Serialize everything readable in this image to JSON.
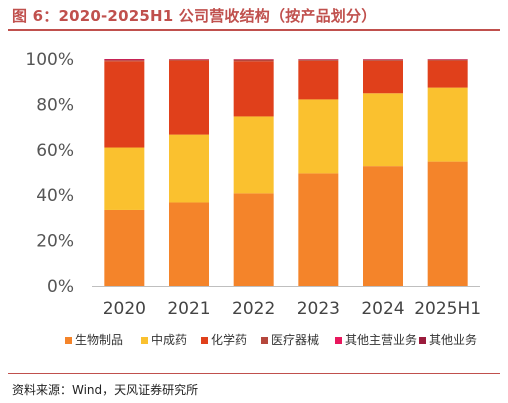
{
  "title": "图 6：2020-2025H1 公司营收结构（按产品划分）",
  "source": "资料来源：Wind，天风证券研究所",
  "chart_data": {
    "type": "bar",
    "stacked": true,
    "percent": true,
    "categories": [
      "2020",
      "2021",
      "2022",
      "2023",
      "2024",
      "2025H1"
    ],
    "ylim": [
      0,
      100
    ],
    "yticks": [
      0,
      20,
      40,
      60,
      80,
      100
    ],
    "ytick_labels": [
      "0%",
      "20%",
      "40%",
      "60%",
      "80%",
      "100%"
    ],
    "grid": false,
    "legend_position": "bottom",
    "series": [
      {
        "name": "生物制品",
        "color": "#f4842a",
        "values": [
          33.5,
          36.8,
          40.8,
          49.6,
          52.8,
          54.8
        ]
      },
      {
        "name": "中成药",
        "color": "#fac12f",
        "values": [
          27.5,
          29.9,
          33.9,
          32.6,
          32.1,
          32.6
        ]
      },
      {
        "name": "化学药",
        "color": "#e0401b",
        "values": [
          38.0,
          32.6,
          24.3,
          17.0,
          14.3,
          11.9
        ]
      },
      {
        "name": "医疗器械",
        "color": "#b5473c",
        "values": [
          0.5,
          0.4,
          0.7,
          0.5,
          0.5,
          0.4
        ]
      },
      {
        "name": "其他主营业务",
        "color": "#e8175d",
        "values": [
          0.3,
          0.2,
          0.2,
          0.2,
          0.2,
          0.2
        ]
      },
      {
        "name": "其他业务",
        "color": "#9b1b3c",
        "values": [
          0.2,
          0.1,
          0.1,
          0.1,
          0.1,
          0.1
        ]
      }
    ]
  }
}
